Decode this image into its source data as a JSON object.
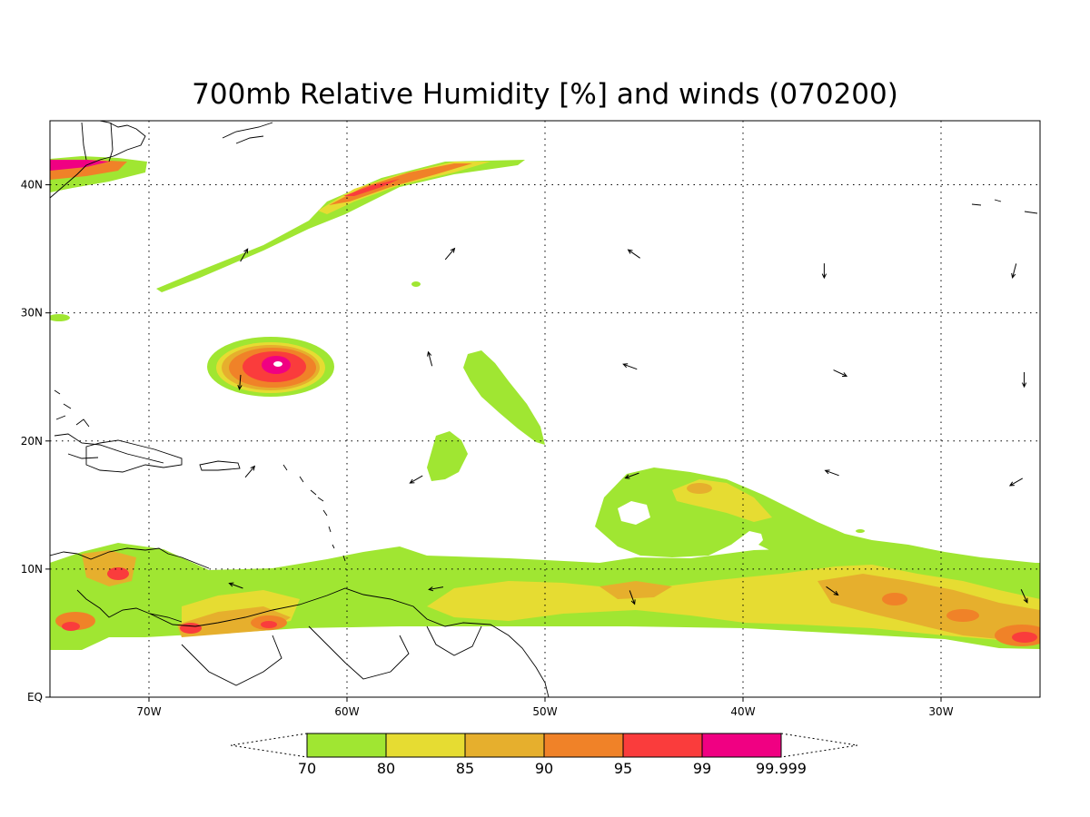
{
  "title": "700mb Relative Humidity [%] and winds (070200)",
  "map": {
    "lon_range": [
      -75,
      -25
    ],
    "lat_range": [
      0,
      45
    ],
    "lon_ticks": [
      {
        "value": -70,
        "label": "70W"
      },
      {
        "value": -60,
        "label": "60W"
      },
      {
        "value": -50,
        "label": "50W"
      },
      {
        "value": -40,
        "label": "40W"
      },
      {
        "value": -30,
        "label": "30W"
      }
    ],
    "lat_ticks": [
      {
        "value": 0,
        "label": "EQ"
      },
      {
        "value": 10,
        "label": "10N"
      },
      {
        "value": 20,
        "label": "20N"
      },
      {
        "value": 30,
        "label": "30N"
      },
      {
        "value": 40,
        "label": "40N"
      }
    ],
    "grid": "dotted"
  },
  "colorbar": {
    "levels": [
      "70",
      "80",
      "85",
      "90",
      "95",
      "99",
      "99.999"
    ],
    "colors": [
      "#a0e632",
      "#e6dc32",
      "#e6af2d",
      "#f08228",
      "#fa3c3c",
      "#f00082"
    ]
  },
  "wind_vectors": [
    {
      "lon": -65.2,
      "lat": 34.5,
      "dir_deg": 30
    },
    {
      "lon": -54.8,
      "lat": 34.6,
      "dir_deg": 40
    },
    {
      "lon": -45.5,
      "lat": 34.6,
      "dir_deg": 305
    },
    {
      "lon": -35.9,
      "lat": 33.3,
      "dir_deg": 180
    },
    {
      "lon": -26.3,
      "lat": 33.3,
      "dir_deg": 195
    },
    {
      "lon": -55.8,
      "lat": 26.4,
      "dir_deg": 345
    },
    {
      "lon": -45.7,
      "lat": 25.8,
      "dir_deg": 290
    },
    {
      "lon": -35.1,
      "lat": 25.3,
      "dir_deg": 115
    },
    {
      "lon": -25.8,
      "lat": 24.8,
      "dir_deg": 180
    },
    {
      "lon": -65.4,
      "lat": 24.6,
      "dir_deg": 185
    },
    {
      "lon": -64.9,
      "lat": 17.6,
      "dir_deg": 40
    },
    {
      "lon": -56.5,
      "lat": 17.0,
      "dir_deg": 240
    },
    {
      "lon": -45.6,
      "lat": 17.3,
      "dir_deg": 250
    },
    {
      "lon": -35.5,
      "lat": 17.5,
      "dir_deg": 290
    },
    {
      "lon": -26.2,
      "lat": 16.8,
      "dir_deg": 240
    },
    {
      "lon": -65.6,
      "lat": 8.7,
      "dir_deg": 290
    },
    {
      "lon": -55.5,
      "lat": 8.5,
      "dir_deg": 260
    },
    {
      "lon": -45.6,
      "lat": 7.8,
      "dir_deg": 160
    },
    {
      "lon": -35.5,
      "lat": 8.3,
      "dir_deg": 125
    },
    {
      "lon": -25.8,
      "lat": 7.9,
      "dir_deg": 155
    }
  ]
}
